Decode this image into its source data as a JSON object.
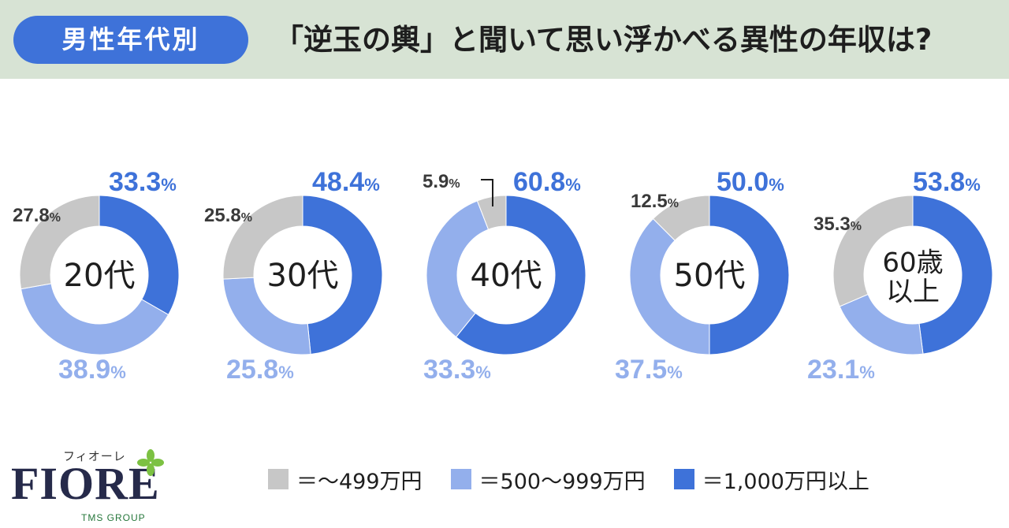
{
  "header": {
    "badge": "男性年代別",
    "title": "「逆玉の輿」と聞いて思い浮かべる異性の年収は?"
  },
  "colors": {
    "header_bg": "#d7e3d4",
    "badge_bg": "#3e72d9",
    "low": "#c7c7c7",
    "mid": "#93afec",
    "high": "#3e72d9",
    "low_text": "#3a3a3a",
    "mid_text": "#93afec",
    "high_text": "#3e72d9"
  },
  "chart_data": {
    "type": "pie",
    "series": [
      {
        "name": "＝～499万円",
        "key": "low"
      },
      {
        "name": "＝500～999万円",
        "key": "mid"
      },
      {
        "name": "＝1,000万円以上",
        "key": "high"
      }
    ],
    "charts": [
      {
        "label": "20代",
        "low": 27.8,
        "mid": 38.9,
        "high": 33.3
      },
      {
        "label": "30代",
        "low": 25.8,
        "mid": 25.8,
        "high": 48.4
      },
      {
        "label": "40代",
        "low": 5.9,
        "mid": 33.3,
        "high": 60.8
      },
      {
        "label": "50代",
        "low": 12.5,
        "mid": 37.5,
        "high": 50.0
      },
      {
        "label": "60歳\n以上",
        "low": 35.3,
        "mid": 23.1,
        "high": 53.8
      }
    ],
    "value_labels": [
      {
        "low": "27.8",
        "mid": "38.9",
        "high": "33.3"
      },
      {
        "low": "25.8",
        "mid": "25.8",
        "high": "48.4"
      },
      {
        "low": "5.9",
        "mid": "33.3",
        "high": "60.8"
      },
      {
        "low": "12.5",
        "mid": "37.5",
        "high": "50.0"
      },
      {
        "low": "35.3",
        "mid": "23.1",
        "high": "53.8"
      }
    ],
    "unit": "%"
  },
  "legend": [
    {
      "label": "＝～499万円",
      "color_key": "low"
    },
    {
      "label": "＝500～999万円",
      "color_key": "mid"
    },
    {
      "label": "＝1,000万円以上",
      "color_key": "high"
    }
  ],
  "logo": {
    "kana": "フィオーレ",
    "word": "FIORE",
    "sub": "TMS GROUP"
  }
}
